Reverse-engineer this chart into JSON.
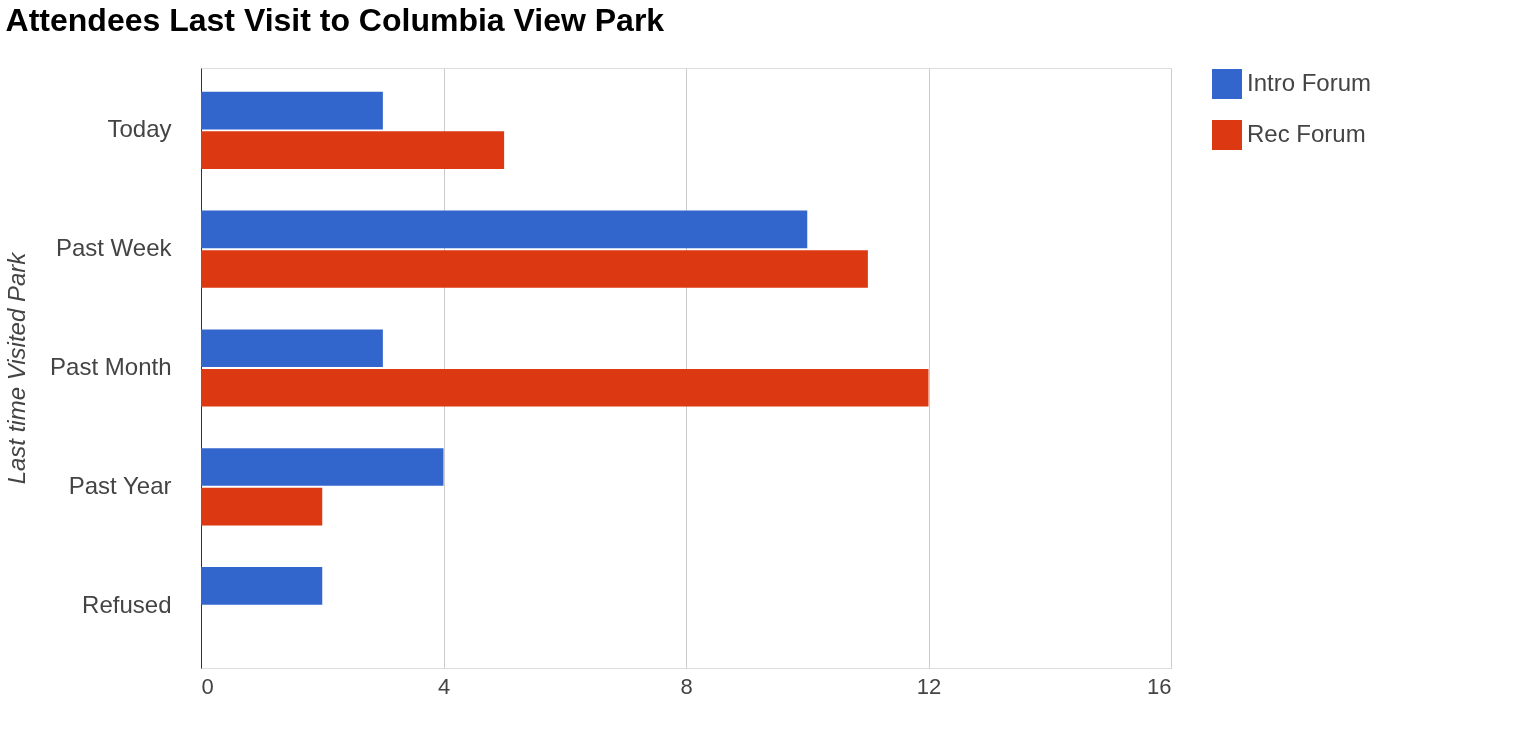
{
  "chart_data": {
    "type": "bar",
    "orientation": "horizontal",
    "title": "Attendees Last Visit to Columbia View Park",
    "ylabel": "Last time Visited Park",
    "categories": [
      "Today",
      "Past Week",
      "Past Month",
      "Past Year",
      "Refused"
    ],
    "series": [
      {
        "name": "Intro Forum",
        "color": "#3366cc",
        "values": [
          3,
          10,
          3,
          4,
          2
        ]
      },
      {
        "name": "Rec Forum",
        "color": "#dc3912",
        "values": [
          5,
          11,
          12,
          2,
          null
        ]
      }
    ],
    "xlim": [
      0,
      16
    ],
    "xticks": [
      0,
      4,
      8,
      12,
      16
    ],
    "grid": "x",
    "legend": "top right"
  }
}
